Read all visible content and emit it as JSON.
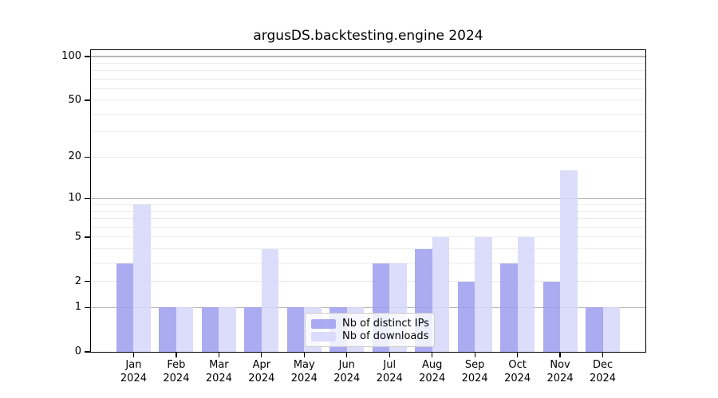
{
  "title": "argusDS.backtesting.engine 2024",
  "chart_data": {
    "type": "bar",
    "title": "argusDS.backtesting.engine 2024",
    "categories": [
      "Jan",
      "Feb",
      "Mar",
      "Apr",
      "May",
      "Jun",
      "Jul",
      "Aug",
      "Sep",
      "Oct",
      "Nov",
      "Dec"
    ],
    "x_year_label": "2024",
    "series": [
      {
        "name": "Nb of distinct IPs",
        "color": "#9c9cf0",
        "fill_opacity": 0.85,
        "values": [
          3,
          1,
          1,
          1,
          1,
          1,
          3,
          4,
          2,
          3,
          2,
          1
        ]
      },
      {
        "name": "Nb of downloads",
        "color": "#d6d6fa",
        "fill_opacity": 0.85,
        "values": [
          9,
          1,
          1,
          4,
          1,
          1,
          3,
          5,
          5,
          5,
          16,
          1
        ]
      }
    ],
    "y_axis": {
      "scale": "symlog",
      "min": 0,
      "max": 100,
      "tick_values": [
        0,
        1,
        2,
        5,
        10,
        20,
        50,
        100
      ],
      "major_gridlines": [
        1,
        10,
        100
      ],
      "minor_gridlines": [
        2,
        3,
        4,
        5,
        6,
        7,
        8,
        9,
        20,
        30,
        40,
        50,
        60,
        70,
        80,
        90
      ]
    },
    "xlabel": "",
    "ylabel": "",
    "grid": true,
    "legend_position": "lower center"
  },
  "colors": {
    "background": "#ffffff",
    "spine": "#000000",
    "text": "#000000",
    "major_grid": "#b5b5b5",
    "minor_grid": "#ebebeb",
    "tick": "#000000",
    "legend_border": "#cccccc"
  }
}
